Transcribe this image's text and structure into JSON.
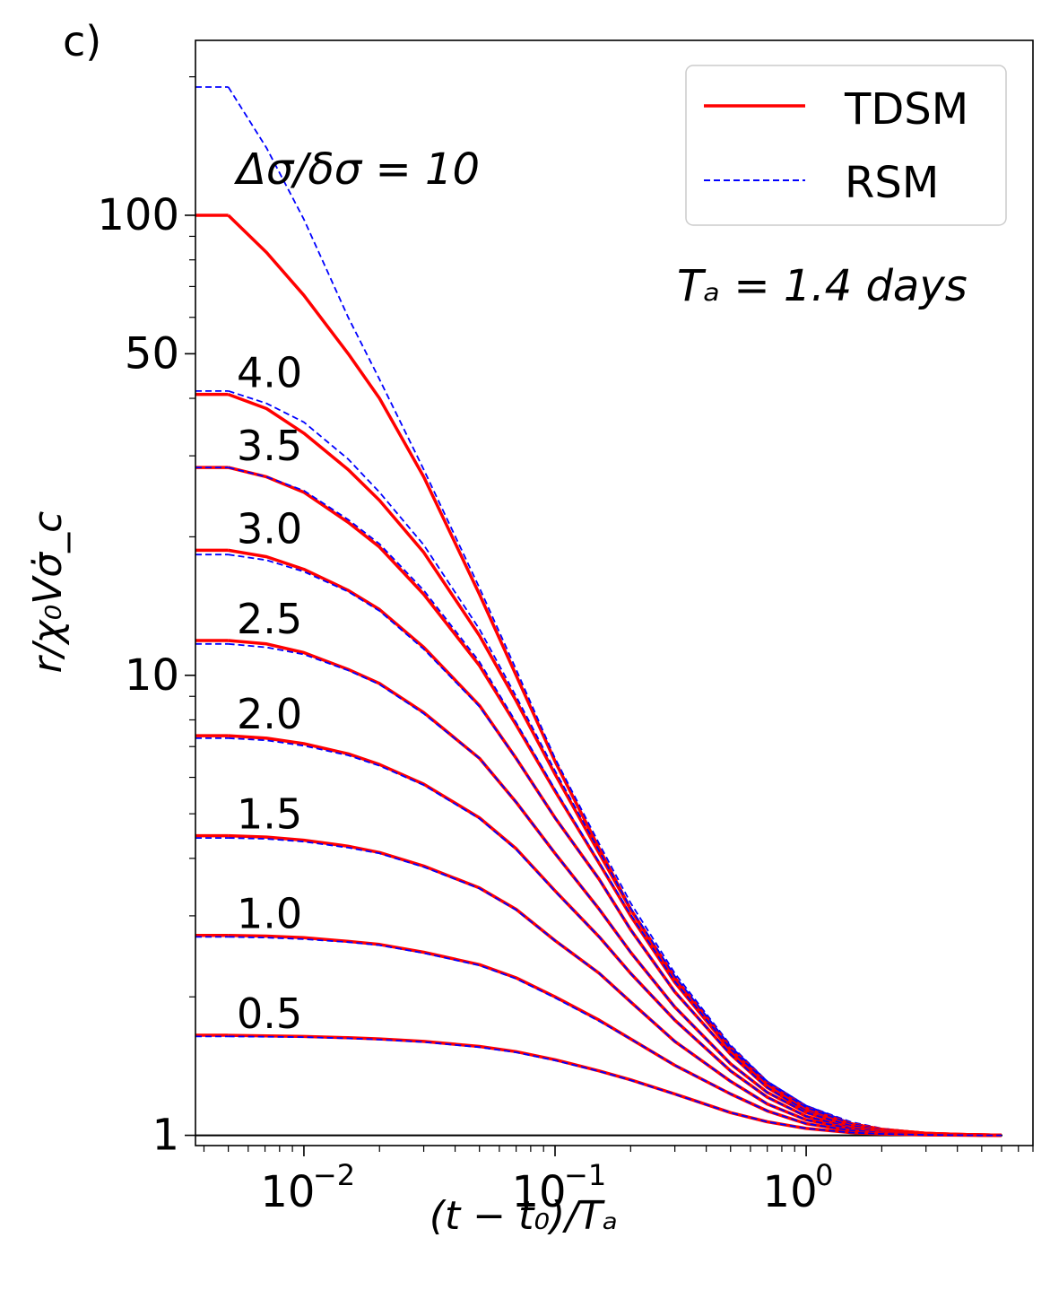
{
  "chart_data": {
    "type": "line",
    "panel_label": "c)",
    "xlabel": "(t − t₀)/Tₐ",
    "ylabel": "r/χ₀Vσ̇_c",
    "x_scale": "log",
    "y_scale": "log",
    "xlim": [
      0.0037,
      8.0
    ],
    "ylim": [
      0.95,
      240
    ],
    "x_ticks": [
      {
        "value": 0.01,
        "base": "10",
        "exp": "−2"
      },
      {
        "value": 0.1,
        "base": "10",
        "exp": "−1"
      },
      {
        "value": 1,
        "base": "10",
        "exp": "0"
      }
    ],
    "y_ticks": [
      {
        "value": 1,
        "label": "1"
      },
      {
        "value": 10,
        "label": "10"
      },
      {
        "value": 50,
        "label": "50"
      },
      {
        "value": 100,
        "label": "100"
      }
    ],
    "reference_line_y": 1,
    "annotation_title": "Δσ/δσ = 10",
    "annotation_ta": "Tₐ = 1.4 days",
    "legend": {
      "placement": "top-right",
      "entries": [
        {
          "label": "TDSM",
          "color": "#ff0000",
          "style": "solid"
        },
        {
          "label": "RSM",
          "color": "#0000ff",
          "style": "dashed"
        }
      ]
    },
    "x": [
      0.0036,
      0.005,
      0.0071,
      0.01,
      0.015,
      0.02,
      0.03,
      0.05,
      0.07,
      0.1,
      0.15,
      0.2,
      0.3,
      0.5,
      0.7,
      1.0,
      1.5,
      2.0,
      3.0,
      4.0,
      5.0,
      6.0
    ],
    "series": [
      {
        "ratio": 10,
        "label": "Δσ/δσ = 10",
        "tdsm": [
          100,
          100,
          83,
          67,
          50,
          40,
          27,
          15,
          10,
          6.5,
          4.2,
          3.1,
          2.2,
          1.55,
          1.3,
          1.15,
          1.06,
          1.03,
          1.01,
          1.005,
          1.002,
          1.001
        ],
        "rsm": [
          190,
          190,
          140,
          98,
          60,
          44,
          28,
          15.5,
          10.3,
          6.6,
          4.3,
          3.2,
          2.25,
          1.57,
          1.31,
          1.16,
          1.07,
          1.035,
          1.012,
          1.006,
          1.003,
          1.001
        ]
      },
      {
        "ratio": 4.0,
        "label": "4.0",
        "tdsm": [
          40.8,
          40.8,
          38,
          33.6,
          28,
          24,
          18.5,
          12.2,
          8.8,
          6.1,
          4.1,
          3.1,
          2.2,
          1.55,
          1.3,
          1.15,
          1.06,
          1.03,
          1.01,
          1.005,
          1.002,
          1.001
        ],
        "rsm": [
          41.5,
          41.5,
          39,
          35.5,
          29.5,
          25,
          19.2,
          12.6,
          9,
          6.2,
          4.15,
          3.12,
          2.22,
          1.56,
          1.31,
          1.16,
          1.065,
          1.032,
          1.011,
          1.005,
          1.002,
          1.001
        ]
      },
      {
        "ratio": 3.5,
        "label": "3.5",
        "tdsm": [
          28.3,
          28.3,
          27,
          25,
          21.5,
          19,
          15,
          10.5,
          7.8,
          5.6,
          3.9,
          3,
          2.15,
          1.53,
          1.29,
          1.14,
          1.06,
          1.03,
          1.01,
          1.005,
          1.002,
          1.001
        ],
        "rsm": [
          28.3,
          28.3,
          27,
          25.2,
          21.8,
          19.3,
          15.3,
          10.7,
          7.9,
          5.65,
          3.92,
          3.02,
          2.16,
          1.54,
          1.3,
          1.15,
          1.06,
          1.03,
          1.01,
          1.005,
          1.002,
          1.001
        ]
      },
      {
        "ratio": 3.0,
        "label": "3.0",
        "tdsm": [
          18.7,
          18.7,
          18.1,
          17,
          15.3,
          13.9,
          11.5,
          8.6,
          6.6,
          4.9,
          3.6,
          2.8,
          2.05,
          1.5,
          1.27,
          1.13,
          1.05,
          1.025,
          1.008,
          1.004,
          1.002,
          1.001
        ],
        "rsm": [
          18.3,
          18.3,
          17.8,
          16.8,
          15.2,
          13.8,
          11.4,
          8.55,
          6.6,
          4.9,
          3.6,
          2.8,
          2.05,
          1.5,
          1.27,
          1.13,
          1.05,
          1.025,
          1.008,
          1.004,
          1.002,
          1.001
        ]
      },
      {
        "ratio": 2.5,
        "label": "2.5",
        "tdsm": [
          11.9,
          11.9,
          11.7,
          11.2,
          10.3,
          9.6,
          8.3,
          6.6,
          5.3,
          4.1,
          3.1,
          2.5,
          1.9,
          1.43,
          1.24,
          1.12,
          1.05,
          1.025,
          1.008,
          1.004,
          1.002,
          1.001
        ],
        "rsm": [
          11.7,
          11.7,
          11.5,
          11.1,
          10.25,
          9.55,
          8.25,
          6.6,
          5.3,
          4.1,
          3.1,
          2.5,
          1.9,
          1.43,
          1.24,
          1.12,
          1.05,
          1.025,
          1.008,
          1.004,
          1.002,
          1.001
        ]
      },
      {
        "ratio": 2.0,
        "label": "2.0",
        "tdsm": [
          7.39,
          7.39,
          7.3,
          7.1,
          6.75,
          6.4,
          5.8,
          4.9,
          4.2,
          3.4,
          2.7,
          2.25,
          1.78,
          1.38,
          1.21,
          1.1,
          1.04,
          1.02,
          1.007,
          1.003,
          1.002,
          1.001
        ],
        "rsm": [
          7.3,
          7.3,
          7.22,
          7.03,
          6.7,
          6.36,
          5.77,
          4.88,
          4.18,
          3.39,
          2.7,
          2.25,
          1.78,
          1.38,
          1.21,
          1.1,
          1.04,
          1.02,
          1.007,
          1.003,
          1.002,
          1.001
        ]
      },
      {
        "ratio": 1.5,
        "label": "1.5",
        "tdsm": [
          4.48,
          4.48,
          4.45,
          4.38,
          4.25,
          4.12,
          3.85,
          3.45,
          3.1,
          2.65,
          2.25,
          1.95,
          1.6,
          1.31,
          1.17,
          1.08,
          1.035,
          1.017,
          1.006,
          1.003,
          1.001,
          1.001
        ],
        "rsm": [
          4.43,
          4.43,
          4.41,
          4.35,
          4.22,
          4.1,
          3.83,
          3.44,
          3.09,
          2.65,
          2.25,
          1.95,
          1.6,
          1.31,
          1.17,
          1.08,
          1.035,
          1.017,
          1.006,
          1.003,
          1.001,
          1.001
        ]
      },
      {
        "ratio": 1.0,
        "label": "1.0",
        "tdsm": [
          2.72,
          2.72,
          2.71,
          2.69,
          2.64,
          2.6,
          2.5,
          2.35,
          2.2,
          2.0,
          1.78,
          1.62,
          1.42,
          1.23,
          1.13,
          1.06,
          1.025,
          1.013,
          1.004,
          1.002,
          1.001,
          1.0
        ],
        "rsm": [
          2.7,
          2.7,
          2.69,
          2.67,
          2.63,
          2.59,
          2.49,
          2.34,
          2.19,
          1.99,
          1.77,
          1.62,
          1.42,
          1.23,
          1.13,
          1.06,
          1.025,
          1.013,
          1.004,
          1.002,
          1.001,
          1.0
        ]
      },
      {
        "ratio": 0.5,
        "label": "0.5",
        "tdsm": [
          1.65,
          1.65,
          1.645,
          1.64,
          1.63,
          1.62,
          1.6,
          1.56,
          1.52,
          1.46,
          1.38,
          1.32,
          1.23,
          1.12,
          1.07,
          1.035,
          1.014,
          1.007,
          1.002,
          1.001,
          1.0,
          1.0
        ],
        "rsm": [
          1.64,
          1.64,
          1.638,
          1.635,
          1.625,
          1.615,
          1.595,
          1.555,
          1.515,
          1.455,
          1.378,
          1.318,
          1.228,
          1.12,
          1.07,
          1.035,
          1.014,
          1.007,
          1.002,
          1.001,
          1.0,
          1.0
        ]
      }
    ]
  }
}
